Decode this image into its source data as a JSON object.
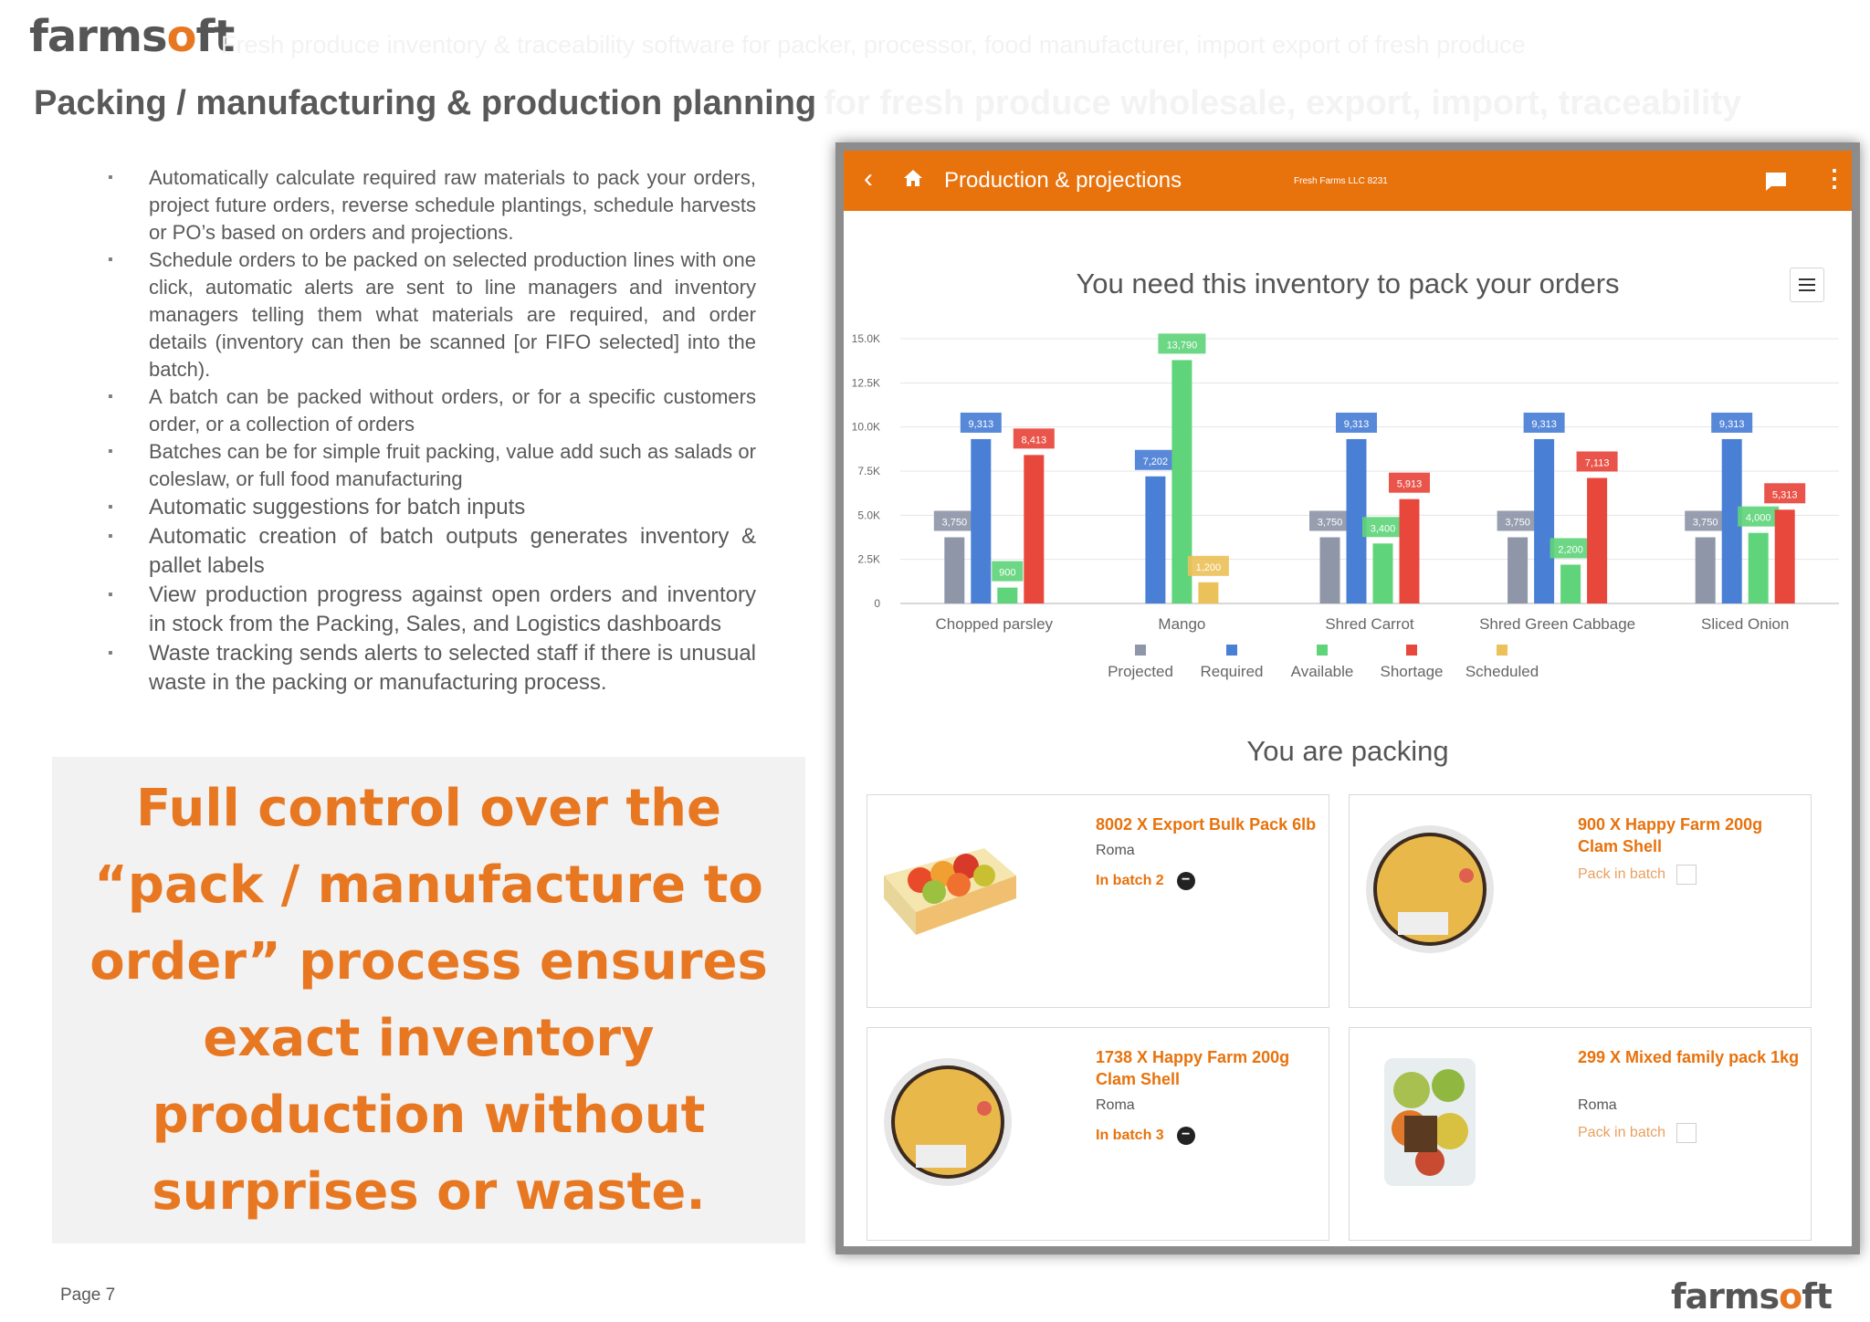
{
  "header": {
    "logo_main": "farms",
    "logo_o": "o",
    "logo_end": "ft",
    "tagline": "Fresh produce inventory & traceability software for packer, processor, food manufacturer, import export of fresh produce",
    "title": "Packing / manufacturing & production planning",
    "title_suffix": "for fresh produce wholesale, export, import, traceability"
  },
  "bullets": [
    "Automatically calculate required raw materials to pack your orders, project future orders, reverse schedule plantings, schedule harvests or PO’s based on orders and projections.",
    "Schedule orders to be packed on selected production lines with one click, automatic alerts are sent to line managers and inventory managers telling them what materials are required, and order details (inventory can then be scanned [or FIFO selected] into the batch).",
    "A batch can be packed without orders, or for a specific customers order, or a collection of orders",
    "Batches can be for simple fruit packing, value add such as salads or coleslaw, or full food manufacturing",
    "Automatic suggestions for batch inputs",
    "Automatic creation of batch outputs generates inventory & pallet labels",
    "View production progress against open orders and inventory in stock from the Packing, Sales, and Logistics dashboards",
    "Waste tracking sends alerts to selected staff if there is unusual waste in the packing or manufacturing process."
  ],
  "callout": "Full control over the “pack / manufacture to order” process ensures exact inventory production without surprises or waste.",
  "footer": {
    "page": "Page 7"
  },
  "app": {
    "back_icon": "chevron-left-icon",
    "title": "Production & projections",
    "org": "Fresh Farms LLC 8231",
    "chart_heading": "You need this inventory to pack your orders",
    "packing_heading": "You are packing",
    "cards": [
      {
        "name": "8002 X Export Bulk Pack 6lb",
        "location": "Roma",
        "status": "In batch 2",
        "in_batch": true,
        "image": "mango-box"
      },
      {
        "name": "900 X Happy Farm 200g Clam Shell",
        "location": "",
        "status": "Pack in batch",
        "in_batch": false,
        "image": "berry-medley"
      },
      {
        "name": "1738 X Happy Farm 200g Clam Shell",
        "location": "Roma",
        "status": "In batch 3",
        "in_batch": true,
        "image": "berry-medley"
      },
      {
        "name": "299 X Mixed family pack 1kg",
        "location": "Roma",
        "status": "Pack in batch",
        "in_batch": false,
        "image": "fruit-bag"
      }
    ],
    "colors": {
      "accent": "#e8720c",
      "projected": "#8e96a8",
      "required": "#4a7fd6",
      "available": "#5fd47a",
      "shortage": "#e8473c",
      "scheduled": "#ebc15a"
    }
  },
  "chart_data": {
    "type": "bar",
    "title": "You need this inventory to pack your orders",
    "categories": [
      "Chopped parsley",
      "Mango",
      "Shred Carrot",
      "Shred Green Cabbage",
      "Sliced Onion"
    ],
    "series": [
      {
        "name": "Projected",
        "color": "#8e96a8",
        "values": [
          3750,
          null,
          3750,
          3750,
          3750
        ],
        "labels": [
          "3,750",
          "",
          "3,750",
          "3,750",
          "3,750"
        ]
      },
      {
        "name": "Required",
        "color": "#4a7fd6",
        "values": [
          9313,
          7202,
          9313,
          9313,
          9313
        ],
        "labels": [
          "9,313",
          "7,202",
          "9,313",
          "9,313",
          "9,313"
        ]
      },
      {
        "name": "Available",
        "color": "#5fd47a",
        "values": [
          900,
          13790,
          3400,
          2200,
          4000
        ],
        "labels": [
          "900",
          "13,790",
          "3,400",
          "2,200",
          "4,000"
        ]
      },
      {
        "name": "Shortage",
        "color": "#e8473c",
        "values": [
          8413,
          null,
          5913,
          7113,
          5313
        ],
        "labels": [
          "8,413",
          "",
          "5,913",
          "7,113",
          "5,313"
        ]
      },
      {
        "name": "Scheduled",
        "color": "#ebc15a",
        "values": [
          null,
          1200,
          null,
          null,
          null
        ],
        "labels": [
          "",
          "1,200",
          "",
          "",
          ""
        ]
      }
    ],
    "ylim": [
      0,
      15000
    ],
    "yticks": [
      0,
      2500,
      5000,
      7500,
      10000,
      12500,
      15000
    ],
    "ytick_labels": [
      "0",
      "2.5K",
      "5.0K",
      "7.5K",
      "10.0K",
      "12.5K",
      "15.0K"
    ],
    "grid": true,
    "legend": "bottom"
  }
}
